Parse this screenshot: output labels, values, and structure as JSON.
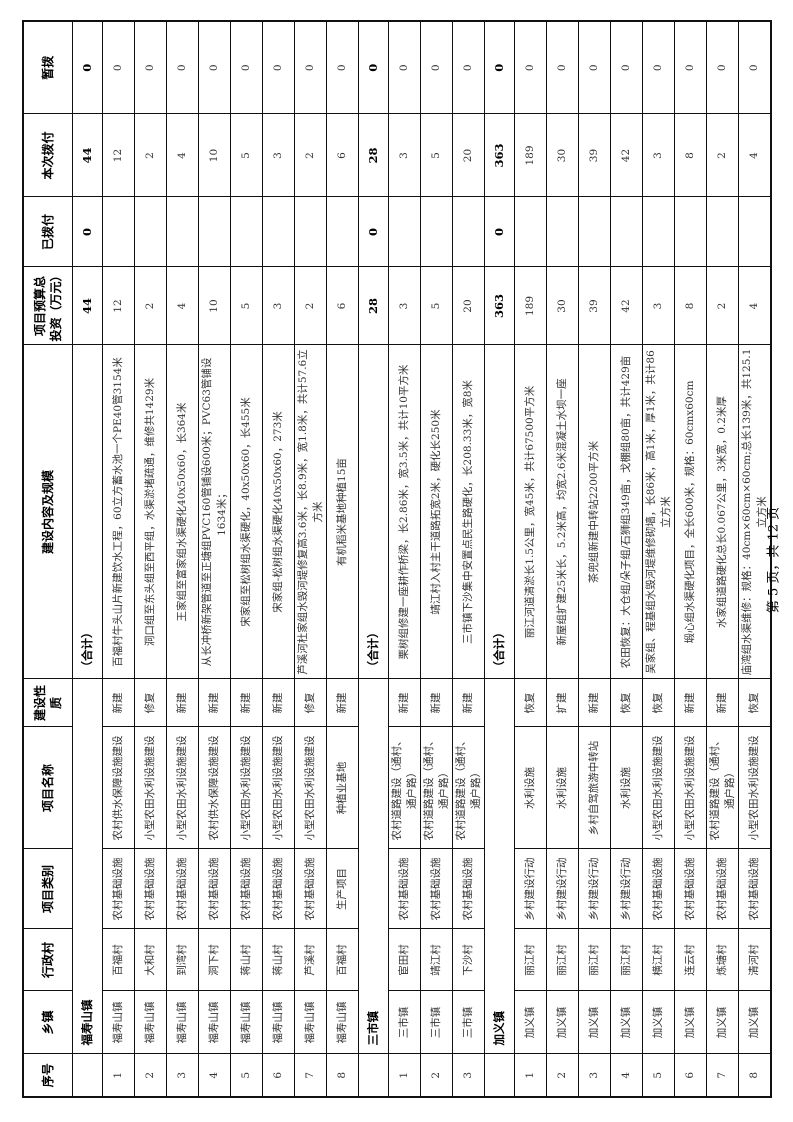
{
  "headers": [
    "序号",
    "乡镇",
    "行政村",
    "项目类别",
    "项目名称",
    "建设性质",
    "建设内容及规模",
    "项目预算总投资（万元）",
    "已拨付",
    "本次拨付",
    "暂拨"
  ],
  "groups": [
    {
      "name": "福寿山镇",
      "total_label": "（合计）",
      "budget": "44",
      "paid": "0",
      "current": "44",
      "temp": "0",
      "rows": [
        {
          "no": "1",
          "town": "福寿山镇",
          "village": "百福村",
          "category": "农村基础设施",
          "project": "农村供水保障设施建设",
          "nature": "新建",
          "content": "百福村牛头山片新建饮水工程，60立方蓄水池一个PE40管3154米",
          "budget": "12",
          "paid": "",
          "current": "12",
          "temp": "0"
        },
        {
          "no": "2",
          "town": "福寿山镇",
          "village": "大和村",
          "category": "农村基础设施",
          "project": "小型农田水利设施建设",
          "nature": "修复",
          "content": "洞口组至东头组至西平组，水渠淤堵疏通，维修共1429米",
          "budget": "2",
          "paid": "",
          "current": "2",
          "temp": "0"
        },
        {
          "no": "3",
          "town": "福寿山镇",
          "village": "到湾村",
          "category": "农村基础设施",
          "project": "小型农田水利设施建设",
          "nature": "新建",
          "content": "王家组至富家组水渠硬化40x50x60，长364米",
          "budget": "4",
          "paid": "",
          "current": "4",
          "temp": "0"
        },
        {
          "no": "4",
          "town": "福寿山镇",
          "village": "洞下村",
          "category": "农村基础设施",
          "project": "农村供水保障设施建设",
          "nature": "新建",
          "content": "从长冲桥新架管道至正塘组PVC160管铺设600米；PVC63管铺设1634米；",
          "budget": "10",
          "paid": "",
          "current": "10",
          "temp": "0"
        },
        {
          "no": "5",
          "town": "福寿山镇",
          "village": "蒋山村",
          "category": "农村基础设施",
          "project": "小型农田水利设施建设",
          "nature": "新建",
          "content": "宋家组至松树组水渠硬化，40x50x60，长455米",
          "budget": "5",
          "paid": "",
          "current": "5",
          "temp": "0"
        },
        {
          "no": "6",
          "town": "福寿山镇",
          "village": "蒋山村",
          "category": "农村基础设施",
          "project": "小型农田水利设施建设",
          "nature": "新建",
          "content": "宋家组-松树组水渠硬化40x50x60，273米",
          "budget": "3",
          "paid": "",
          "current": "3",
          "temp": "0"
        },
        {
          "no": "7",
          "town": "福寿山镇",
          "village": "芦溪村",
          "category": "农村基础设施",
          "project": "小型农田水利设施建设",
          "nature": "修复",
          "content": "芦溪河杜家组水毁河堤修复高3.6米，长8.9米，宽1.8米，共计57.6立方米",
          "budget": "2",
          "paid": "",
          "current": "2",
          "temp": "0"
        },
        {
          "no": "8",
          "town": "福寿山镇",
          "village": "百福村",
          "category": "生产项目",
          "project": "种植业基地",
          "nature": "新建",
          "content": "有机稻米基地种植15亩",
          "budget": "6",
          "paid": "",
          "current": "6",
          "temp": "0"
        }
      ]
    },
    {
      "name": "三市镇",
      "total_label": "（合计）",
      "budget": "28",
      "paid": "0",
      "current": "28",
      "temp": "0",
      "rows": [
        {
          "no": "1",
          "town": "三市镇",
          "village": "宦田村",
          "category": "农村基础设施",
          "project": "农村道路建设（通村、通户路）",
          "nature": "新建",
          "content": "栗树组修建一座耕作桥梁，长2.86米，宽3.5米，共计10平方米",
          "budget": "3",
          "paid": "",
          "current": "3",
          "temp": "0"
        },
        {
          "no": "2",
          "town": "三市镇",
          "village": "靖江村",
          "category": "农村基础设施",
          "project": "农村道路建设（通村、通户路）",
          "nature": "新建",
          "content": "靖江村入村主干道路拓宽2米，硬化长250米",
          "budget": "5",
          "paid": "",
          "current": "5",
          "temp": "0"
        },
        {
          "no": "3",
          "town": "三市镇",
          "village": "下沙村",
          "category": "农村基础设施",
          "project": "农村道路建设（通村、通户路）",
          "nature": "新建",
          "content": "三市镇下沙集中安置点民生路硬化，长208.33米，宽8米",
          "budget": "20",
          "paid": "",
          "current": "20",
          "temp": "0"
        }
      ]
    },
    {
      "name": "加义镇",
      "total_label": "（合计）",
      "budget": "363",
      "paid": "0",
      "current": "363",
      "temp": "0",
      "rows": [
        {
          "no": "1",
          "town": "加义镇",
          "village": "丽江村",
          "category": "乡村建设行动",
          "project": "水利设施",
          "nature": "恢复",
          "content": "丽江河道清淤长1.5公里，宽45米，共计67500平方米",
          "budget": "189",
          "paid": "",
          "current": "189",
          "temp": "0"
        },
        {
          "no": "2",
          "town": "加义镇",
          "village": "丽江村",
          "category": "乡村建设行动",
          "project": "水利设施",
          "nature": "扩建",
          "content": "新屋组扩建25米长，5.2米高，均宽2.6米混凝土水坝一座",
          "budget": "30",
          "paid": "",
          "current": "30",
          "temp": "0"
        },
        {
          "no": "3",
          "town": "加义镇",
          "village": "丽江村",
          "category": "乡村建设行动",
          "project": "乡村自驾旅游中转站",
          "nature": "新建",
          "content": "茶兜组新建中转站2200平方米",
          "budget": "39",
          "paid": "",
          "current": "39",
          "temp": "0"
        },
        {
          "no": "4",
          "town": "加义镇",
          "village": "丽江村",
          "category": "乡村建设行动",
          "project": "水利设施",
          "nature": "恢复",
          "content": "农田恢复：大仓组/朵子组/石狮组349亩，戈棚组80亩，共计429亩",
          "budget": "42",
          "paid": "",
          "current": "42",
          "temp": "0"
        },
        {
          "no": "5",
          "town": "加义镇",
          "village": "横江村",
          "category": "农村基础设施",
          "project": "小型农田水利设施建设",
          "nature": "恢复",
          "content": "吴家组、程基组水毁河堤维修砌墙，长86米，高1米，厚1米，共计86立方米",
          "budget": "3",
          "paid": "",
          "current": "3",
          "temp": "0"
        },
        {
          "no": "6",
          "town": "加义镇",
          "village": "连云村",
          "category": "农村基础设施",
          "project": "小型农田水利设施建设",
          "nature": "新建",
          "content": "塅心组水渠硬化项目，全长600米，规格：60cmx60cm",
          "budget": "8",
          "paid": "",
          "current": "8",
          "temp": "0"
        },
        {
          "no": "7",
          "town": "加义镇",
          "village": "炼塘村",
          "category": "农村基础设施",
          "project": "农村道路建设（通村、通户路）",
          "nature": "新建",
          "content": "水家组道路硬化总长0.067公里，3米宽，0.2米厚",
          "budget": "2",
          "paid": "",
          "current": "2",
          "temp": "0"
        },
        {
          "no": "8",
          "town": "加义镇",
          "village": "清河村",
          "category": "农村基础设施",
          "project": "小型农田水利设施建设",
          "nature": "恢复",
          "content": "庙湾组水渠维修：规格：40cm×60cm×60cm;总长139米，共125.1立方米",
          "budget": "4",
          "paid": "",
          "current": "4",
          "temp": "0"
        }
      ]
    }
  ],
  "footer": {
    "page_text": "第 5 页，共 12 页"
  }
}
